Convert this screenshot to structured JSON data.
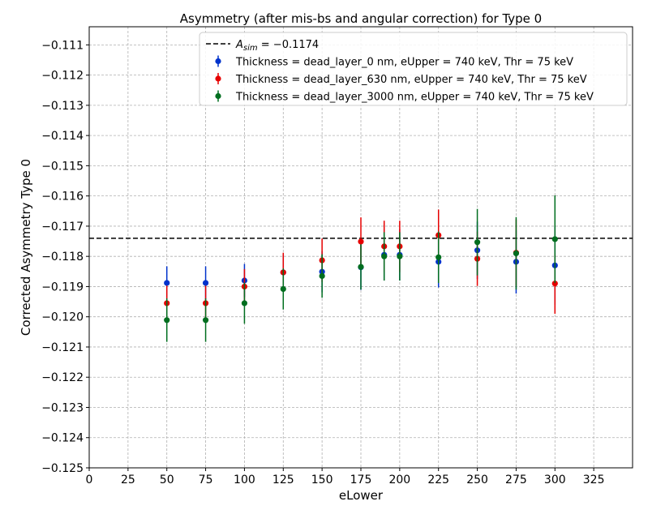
{
  "chart_data": {
    "type": "scatter",
    "title": "Asymmetry (after mis-bs and angular correction) for Type 0",
    "xlabel": "eLower",
    "ylabel": "Corrected Asymmetry Type 0",
    "xlim": [
      0,
      350
    ],
    "ylim": [
      -0.125,
      -0.1104
    ],
    "x_ticks": [
      0,
      25,
      50,
      75,
      100,
      125,
      150,
      175,
      200,
      225,
      250,
      275,
      300,
      325
    ],
    "x_tick_labels": [
      "0",
      "25",
      "50",
      "75",
      "100",
      "125",
      "150",
      "175",
      "200",
      "225",
      "250",
      "275",
      "300",
      "325"
    ],
    "y_ticks": [
      -0.125,
      -0.124,
      -0.123,
      -0.122,
      -0.121,
      -0.12,
      -0.119,
      -0.118,
      -0.117,
      -0.116,
      -0.115,
      -0.114,
      -0.113,
      -0.112,
      -0.111
    ],
    "y_tick_labels": [
      "−0.125",
      "−0.124",
      "−0.123",
      "−0.122",
      "−0.121",
      "−0.120",
      "−0.119",
      "−0.118",
      "−0.117",
      "−0.116",
      "−0.115",
      "−0.114",
      "−0.113",
      "−0.112",
      "−0.111"
    ],
    "grid": true,
    "legend_position": "top-right",
    "reference_line": {
      "y": -0.1174,
      "label_prefix": "A",
      "label_subscript": "sim",
      "label_suffix": " = −0.1174",
      "style": "dashed",
      "color": "#000000"
    },
    "series": [
      {
        "name": "Thickness = dead_layer_0 nm, eUpper = 740 keV, Thr = 75 keV",
        "color": "#0033cc",
        "x": [
          50,
          75,
          100,
          125,
          150,
          175,
          190,
          200,
          225,
          250,
          275,
          300
        ],
        "y": [
          -0.11888,
          -0.11888,
          -0.1188,
          -0.11853,
          -0.11851,
          -0.11836,
          -0.11795,
          -0.11795,
          -0.11818,
          -0.1178,
          -0.11818,
          -0.1183
        ],
        "err": [
          0.00055,
          0.00055,
          0.00055,
          0.0006,
          0.00068,
          0.00075,
          0.00085,
          0.00085,
          0.00085,
          0.00095,
          0.00105,
          0.0013
        ]
      },
      {
        "name": "Thickness = dead_layer_630 nm, eUpper = 740 keV, Thr = 75 keV",
        "color": "#e60000",
        "x": [
          50,
          75,
          100,
          125,
          150,
          175,
          190,
          200,
          225,
          250,
          275,
          300
        ],
        "y": [
          -0.11955,
          -0.11955,
          -0.119,
          -0.11853,
          -0.11813,
          -0.11751,
          -0.11767,
          -0.11767,
          -0.1173,
          -0.11808,
          -0.11788,
          -0.1189
        ],
        "err": [
          0.00058,
          0.00058,
          0.00058,
          0.00065,
          0.00072,
          0.0008,
          0.00085,
          0.00085,
          0.00085,
          0.0009,
          0.0011,
          0.001
        ]
      },
      {
        "name": "Thickness = dead_layer_3000 nm, eUpper = 740 keV, Thr = 75 keV",
        "color": "#006e1f",
        "x": [
          50,
          75,
          100,
          125,
          150,
          175,
          190,
          200,
          225,
          250,
          275,
          300
        ],
        "y": [
          -0.12011,
          -0.12011,
          -0.11955,
          -0.11908,
          -0.11865,
          -0.11835,
          -0.118,
          -0.118,
          -0.11803,
          -0.11753,
          -0.1179,
          -0.11743
        ],
        "err": [
          0.00072,
          0.00072,
          0.00068,
          0.00068,
          0.00072,
          0.00075,
          0.0008,
          0.0008,
          0.00085,
          0.0011,
          0.0012,
          0.00145
        ]
      }
    ]
  }
}
